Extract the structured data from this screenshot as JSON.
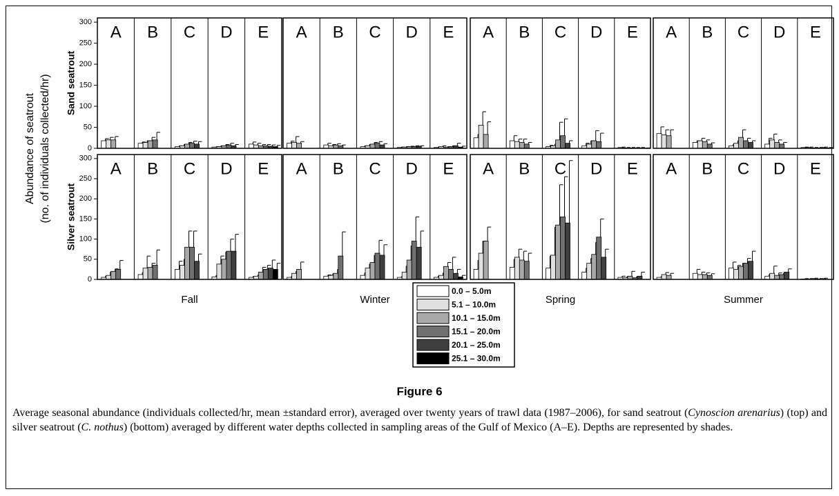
{
  "chart_data": {
    "type": "bar",
    "ylabel": [
      "Abundance of seatrout",
      "(no. of individuals collected/hr)"
    ],
    "rows": [
      "Sand seatrout",
      "Silver seatrout"
    ],
    "seasons": [
      "Fall",
      "Winter",
      "Spring",
      "Summer"
    ],
    "areas": [
      "A",
      "B",
      "C",
      "D",
      "E"
    ],
    "series": [
      {
        "name": "0.0 – 5.0m",
        "color": "#ffffff"
      },
      {
        "name": "5.1 – 10.0m",
        "color": "#e0e0e0"
      },
      {
        "name": "10.1 – 15.0m",
        "color": "#a8a8a8"
      },
      {
        "name": "15.1 – 20.0m",
        "color": "#707070"
      },
      {
        "name": "20.1 – 25.0m",
        "color": "#404040"
      },
      {
        "name": "25.1 – 30.0m",
        "color": "#000000"
      }
    ],
    "ylim": [
      0,
      310
    ],
    "yticks": [
      0,
      50,
      100,
      150,
      200,
      250,
      300
    ],
    "values": [
      [
        [
          [
            18,
            20,
            20,
            null,
            null,
            null
          ],
          [
            12,
            14,
            18,
            20,
            null,
            null
          ],
          [
            4,
            6,
            10,
            12,
            10,
            null
          ],
          [
            3,
            4,
            6,
            8,
            6,
            null
          ],
          [
            10,
            8,
            6,
            6,
            5,
            4
          ]
        ],
        [
          [
            12,
            14,
            12,
            null,
            null,
            null
          ],
          [
            8,
            6,
            8,
            6,
            null,
            null
          ],
          [
            4,
            6,
            10,
            12,
            8,
            null
          ],
          [
            2,
            3,
            4,
            4,
            5,
            null
          ],
          [
            2,
            4,
            3,
            4,
            6,
            3
          ]
        ],
        [
          [
            25,
            55,
            33,
            null,
            null,
            null
          ],
          [
            18,
            16,
            14,
            10,
            null,
            null
          ],
          [
            4,
            6,
            20,
            30,
            12,
            null
          ],
          [
            6,
            10,
            18,
            16,
            null,
            null
          ],
          [
            2,
            1,
            1,
            1,
            1,
            0.5
          ]
        ],
        [
          [
            35,
            32,
            30,
            null,
            null,
            null
          ],
          [
            14,
            18,
            16,
            10,
            null,
            null
          ],
          [
            6,
            12,
            26,
            18,
            14,
            null
          ],
          [
            10,
            20,
            14,
            10,
            null,
            null
          ],
          [
            2,
            2,
            1,
            1,
            2,
            1
          ]
        ]
      ],
      [
        [
          [
            5,
            10,
            20,
            25,
            null,
            null
          ],
          [
            12,
            28,
            30,
            35,
            null,
            null
          ],
          [
            25,
            35,
            80,
            80,
            45,
            null
          ],
          [
            6,
            38,
            50,
            70,
            70,
            null
          ],
          [
            5,
            8,
            18,
            25,
            28,
            25
          ]
        ],
        [
          [
            5,
            15,
            25,
            null,
            null,
            null
          ],
          [
            8,
            10,
            15,
            58,
            null,
            null
          ],
          [
            10,
            28,
            42,
            65,
            60,
            null
          ],
          [
            5,
            18,
            48,
            95,
            80,
            null
          ],
          [
            5,
            10,
            32,
            25,
            15,
            6
          ]
        ],
        [
          [
            25,
            65,
            95,
            null,
            null,
            null
          ],
          [
            30,
            55,
            48,
            45,
            null,
            null
          ],
          [
            28,
            60,
            135,
            155,
            140,
            null
          ],
          [
            18,
            40,
            62,
            105,
            55,
            null
          ],
          [
            5,
            4,
            8,
            4,
            8,
            null
          ]
        ],
        [
          [
            5,
            12,
            10,
            null,
            null,
            null
          ],
          [
            15,
            12,
            12,
            10,
            null,
            null
          ],
          [
            28,
            25,
            32,
            40,
            45,
            null
          ],
          [
            8,
            15,
            10,
            12,
            18,
            null
          ],
          [
            1,
            1,
            2,
            1,
            2,
            null
          ]
        ]
      ]
    ],
    "errors": [
      [
        [
          [
            5,
            6,
            8,
            null,
            null,
            null
          ],
          [
            3,
            4,
            8,
            18,
            null,
            null
          ],
          [
            2,
            3,
            4,
            5,
            6,
            null
          ],
          [
            1,
            2,
            3,
            4,
            3,
            null
          ],
          [
            5,
            4,
            3,
            3,
            3,
            3
          ]
        ],
        [
          [
            5,
            14,
            4,
            null,
            null,
            null
          ],
          [
            4,
            3,
            3,
            2,
            null,
            null
          ],
          [
            2,
            3,
            4,
            4,
            3,
            null
          ],
          [
            1,
            1,
            1,
            2,
            1,
            null
          ],
          [
            1,
            2,
            1,
            2,
            6,
            2
          ]
        ],
        [
          [
            8,
            32,
            30,
            null,
            null,
            null
          ],
          [
            12,
            6,
            8,
            4,
            null,
            null
          ],
          [
            3,
            4,
            42,
            40,
            6,
            null
          ],
          [
            6,
            8,
            24,
            20,
            null,
            null
          ],
          [
            1,
            1,
            1,
            1,
            1,
            0.5
          ]
        ],
        [
          [
            16,
            12,
            14,
            null,
            null,
            null
          ],
          [
            4,
            6,
            4,
            3,
            null,
            null
          ],
          [
            3,
            6,
            18,
            6,
            4,
            null
          ],
          [
            14,
            14,
            6,
            4,
            null,
            null
          ],
          [
            1,
            1,
            1,
            1,
            1,
            1
          ]
        ]
      ],
      [
        [
          [
            3,
            8,
            6,
            22,
            null,
            null
          ],
          [
            5,
            30,
            10,
            38,
            null,
            null
          ],
          [
            20,
            15,
            40,
            40,
            18,
            null
          ],
          [
            4,
            20,
            18,
            30,
            42,
            null
          ],
          [
            2,
            3,
            12,
            10,
            20,
            15
          ]
        ],
        [
          [
            2,
            5,
            18,
            null,
            null,
            null
          ],
          [
            3,
            4,
            10,
            60,
            null,
            null
          ],
          [
            6,
            10,
            18,
            32,
            26,
            null
          ],
          [
            2,
            15,
            35,
            60,
            40,
            null
          ],
          [
            3,
            6,
            10,
            30,
            10,
            4
          ]
        ],
        [
          [
            22,
            30,
            35,
            null,
            null,
            null
          ],
          [
            20,
            20,
            22,
            20,
            null,
            null
          ],
          [
            30,
            70,
            100,
            100,
            155,
            null
          ],
          [
            10,
            12,
            30,
            45,
            20,
            null
          ],
          [
            3,
            3,
            12,
            3,
            10,
            null
          ]
        ],
        [
          [
            2,
            5,
            5,
            null,
            null,
            null
          ],
          [
            10,
            6,
            4,
            4,
            null,
            null
          ],
          [
            15,
            10,
            8,
            12,
            25,
            null
          ],
          [
            4,
            18,
            6,
            4,
            8,
            null
          ],
          [
            1,
            1,
            1,
            1,
            1,
            null
          ]
        ]
      ]
    ],
    "figure_label": "Figure 6",
    "caption": [
      {
        "text": "Average seasonal abundance (individuals collected/hr, mean ±standard error), averaged over twenty years of trawl data (1987–2006), for sand seatrout (",
        "italic": false
      },
      {
        "text": "Cynoscion arenarius",
        "italic": true
      },
      {
        "text": ") (top) and silver seatrout (",
        "italic": false
      },
      {
        "text": "C. nothus",
        "italic": true
      },
      {
        "text": ") (bottom) averaged by different water depths collected in sampling areas of the Gulf of Mexico (A–E). Depths are represented by shades.",
        "italic": false
      }
    ]
  }
}
